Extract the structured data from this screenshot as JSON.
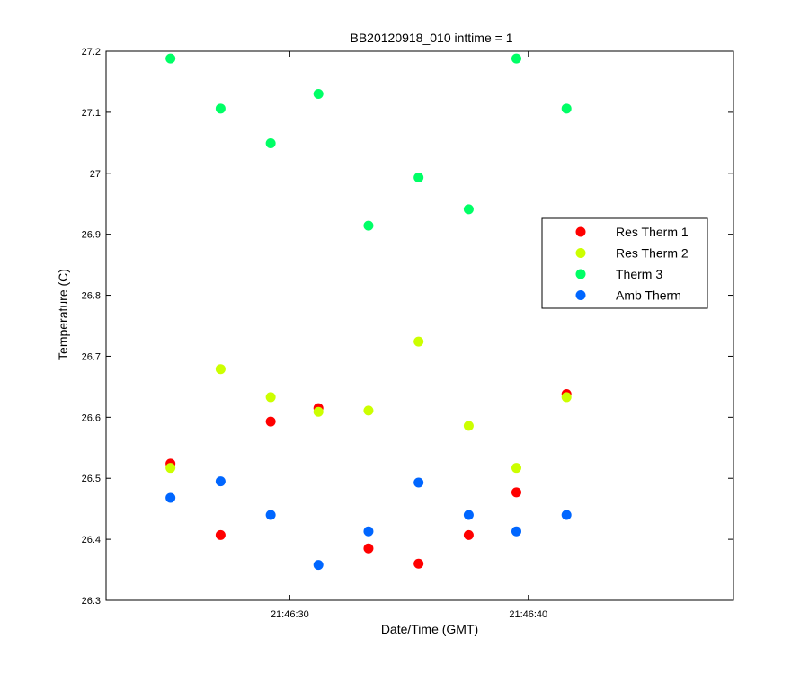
{
  "chart_data": {
    "type": "scatter",
    "title": "BB20120918_010 inttime = 1",
    "xlabel": "Date/Time (GMT)",
    "ylabel": "Temperature (C)",
    "x_unit": "seconds past 21:46:00 GMT",
    "xlim": [
      22.3,
      48.6
    ],
    "ylim": [
      26.3,
      27.2
    ],
    "x_ticks": [
      {
        "value": 30,
        "label": "21:46:30"
      },
      {
        "value": 40,
        "label": "21:46:40"
      }
    ],
    "y_ticks": [
      {
        "value": 26.3,
        "label": "26.3"
      },
      {
        "value": 26.4,
        "label": "26.4"
      },
      {
        "value": 26.5,
        "label": "26.5"
      },
      {
        "value": 26.6,
        "label": "26.6"
      },
      {
        "value": 26.7,
        "label": "26.7"
      },
      {
        "value": 26.8,
        "label": "26.8"
      },
      {
        "value": 26.9,
        "label": "26.9"
      },
      {
        "value": 27.0,
        "label": "27"
      },
      {
        "value": 27.1,
        "label": "27.1"
      },
      {
        "value": 27.2,
        "label": "27.2"
      }
    ],
    "x": [
      25.0,
      27.1,
      29.2,
      31.2,
      33.3,
      35.4,
      37.5,
      39.5,
      41.6
    ],
    "series": [
      {
        "name": "Res Therm 1",
        "color": "#ff0000",
        "values": [
          26.524,
          26.407,
          26.593,
          26.615,
          26.385,
          26.36,
          26.407,
          26.477,
          26.638
        ]
      },
      {
        "name": "Res Therm 2",
        "color": "#ccff00",
        "values": [
          26.517,
          26.679,
          26.633,
          26.609,
          26.611,
          26.724,
          26.586,
          26.517,
          26.633
        ]
      },
      {
        "name": "Therm 3",
        "color": "#00ff66",
        "values": [
          27.188,
          27.106,
          27.049,
          27.13,
          26.914,
          26.993,
          26.941,
          27.188,
          27.106
        ]
      },
      {
        "name": "Amb Therm",
        "color": "#0066ff",
        "values": [
          26.468,
          26.495,
          26.44,
          26.358,
          26.413,
          26.493,
          26.44,
          26.413,
          26.44
        ]
      }
    ],
    "legend_position": "right",
    "grid": false
  }
}
